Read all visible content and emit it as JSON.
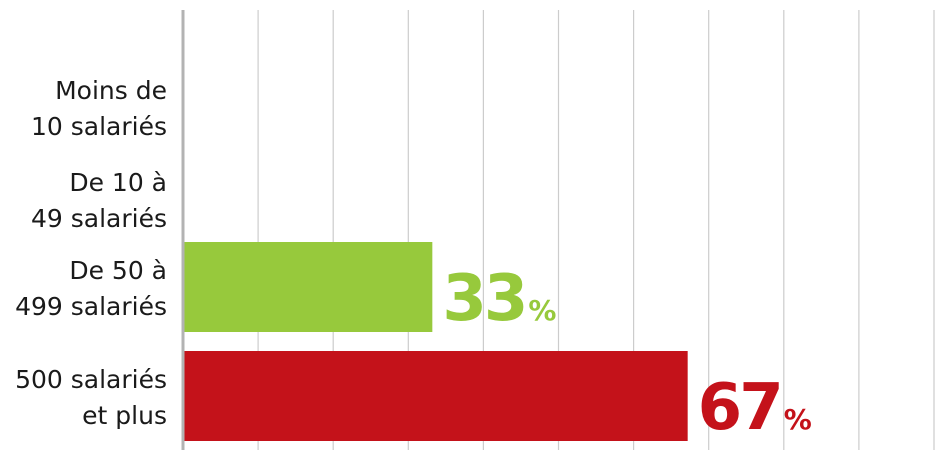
{
  "chart_data": {
    "type": "bar",
    "orientation": "horizontal",
    "categories": [
      [
        "Moins de",
        "10 salariés"
      ],
      [
        "De 10 à",
        "49 salariés"
      ],
      [
        "De 50 à",
        "499 salariés"
      ],
      [
        "500 salariés",
        "et plus"
      ]
    ],
    "values": [
      null,
      null,
      33,
      67
    ],
    "value_labels": [
      "",
      "",
      "33",
      "67"
    ],
    "unit": "%",
    "colors": [
      "",
      "",
      "#97c93c",
      "#c4121a"
    ],
    "xlim": [
      0,
      100
    ],
    "grid": true,
    "grid_color": "#cccccc",
    "axis_color": "#b3b3b3"
  }
}
